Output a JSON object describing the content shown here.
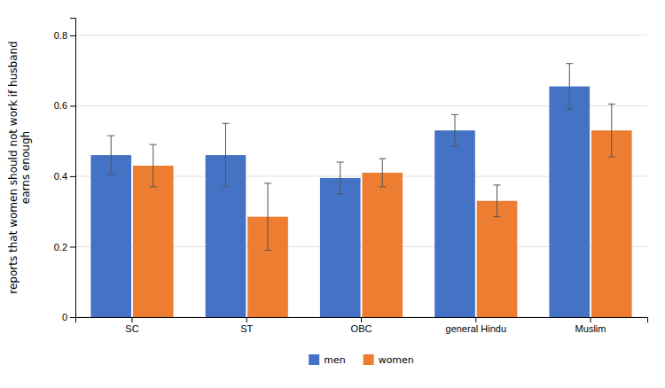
{
  "chart_data": {
    "type": "bar",
    "categories": [
      "SC",
      "ST",
      "OBC",
      "general Hindu",
      "Muslim"
    ],
    "series": [
      {
        "name": "men",
        "color": "#4472C4",
        "values": [
          0.46,
          0.46,
          0.395,
          0.53,
          0.655
        ],
        "errors": [
          0.055,
          0.09,
          0.045,
          0.045,
          0.065
        ]
      },
      {
        "name": "women",
        "color": "#ED7D31",
        "values": [
          0.43,
          0.285,
          0.41,
          0.33,
          0.53
        ],
        "errors": [
          0.06,
          0.095,
          0.04,
          0.045,
          0.075
        ]
      }
    ],
    "ylabel": "reports that women should not work if husband\nearns enough",
    "ylim": [
      0,
      0.85
    ],
    "yticks": [
      0,
      0.2,
      0.4,
      0.6,
      0.8
    ],
    "grid": true,
    "legend": "bottom"
  }
}
